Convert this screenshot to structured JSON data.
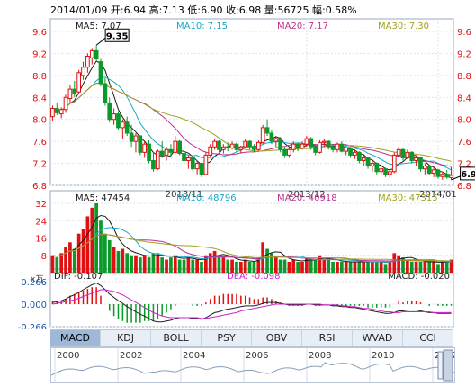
{
  "header": {
    "date": "2014/01/09",
    "open_label": "开:",
    "open": "6.94",
    "high_label": "高:",
    "high": "7.13",
    "low_label": "低:",
    "low": "6.90",
    "close_label": "收:",
    "close": "6.98",
    "volume_label": "量:",
    "volume": "56725",
    "change_label": "幅:",
    "change": "0.58%"
  },
  "colors": {
    "up": "#e01010",
    "down": "#0a9a2a",
    "ma5": "#1a1a1a",
    "ma10": "#1aa8c8",
    "ma20": "#c03090",
    "ma30": "#a0a020",
    "axis": "#e01010",
    "dif": "#202020",
    "dea": "#d020d0"
  },
  "tabs": [
    {
      "label": "MACD",
      "active": true
    },
    {
      "label": "KDJ"
    },
    {
      "label": "BOLL"
    },
    {
      "label": "PSY"
    },
    {
      "label": "OBV"
    },
    {
      "label": "RSI"
    },
    {
      "label": "WVAD"
    },
    {
      "label": "CCI"
    }
  ],
  "chart_data": [
    {
      "type": "candlestick",
      "legend": [
        {
          "label": "MA5: 7.07",
          "color": "#1a1a1a"
        },
        {
          "label": "MA10: 7.15",
          "color": "#1aa8c8"
        },
        {
          "label": "MA20: 7.17",
          "color": "#c03090"
        },
        {
          "label": "MA30: 7.30",
          "color": "#a0a020"
        }
      ],
      "ylim": [
        6.8,
        9.6
      ],
      "yticks": [
        "9.6",
        "9.2",
        "8.8",
        "8.4",
        "8.0",
        "7.6",
        "7.2",
        "6.8"
      ],
      "xticks": [
        {
          "label": "2013/11",
          "index": 30
        },
        {
          "label": "2013/12",
          "index": 58
        },
        {
          "label": "2014/01",
          "index": 88
        }
      ],
      "annotations": [
        {
          "label": "9.35",
          "index": 10
        },
        {
          "label": "6.90",
          "index": 91
        }
      ],
      "ohlc": [
        [
          8.05,
          8.25,
          7.98,
          8.2
        ],
        [
          8.2,
          8.3,
          8.08,
          8.12
        ],
        [
          8.1,
          8.22,
          8.02,
          8.18
        ],
        [
          8.18,
          8.45,
          8.12,
          8.4
        ],
        [
          8.38,
          8.62,
          8.3,
          8.55
        ],
        [
          8.55,
          8.7,
          8.4,
          8.48
        ],
        [
          8.5,
          8.9,
          8.46,
          8.85
        ],
        [
          8.8,
          9.05,
          8.72,
          8.95
        ],
        [
          8.95,
          9.2,
          8.85,
          9.15
        ],
        [
          9.12,
          9.3,
          9.0,
          9.25
        ],
        [
          9.25,
          9.35,
          9.05,
          9.1
        ],
        [
          9.05,
          9.1,
          8.6,
          8.65
        ],
        [
          8.65,
          8.75,
          8.25,
          8.3
        ],
        [
          8.3,
          8.4,
          7.95,
          8.0
        ],
        [
          8.0,
          8.2,
          7.9,
          8.1
        ],
        [
          8.1,
          8.15,
          7.8,
          7.85
        ],
        [
          7.85,
          8.0,
          7.65,
          7.95
        ],
        [
          7.95,
          8.05,
          7.7,
          7.75
        ],
        [
          7.75,
          7.9,
          7.5,
          7.6
        ],
        [
          7.6,
          7.75,
          7.4,
          7.7
        ],
        [
          7.7,
          7.72,
          7.35,
          7.4
        ],
        [
          7.4,
          7.6,
          7.3,
          7.55
        ],
        [
          7.55,
          7.62,
          7.2,
          7.25
        ],
        [
          7.25,
          7.4,
          7.05,
          7.1
        ],
        [
          7.1,
          7.45,
          7.08,
          7.42
        ],
        [
          7.42,
          7.6,
          7.3,
          7.35
        ],
        [
          7.35,
          7.5,
          7.25,
          7.45
        ],
        [
          7.45,
          7.55,
          7.3,
          7.4
        ],
        [
          7.4,
          7.7,
          7.38,
          7.6
        ],
        [
          7.6,
          7.62,
          7.35,
          7.38
        ],
        [
          7.38,
          7.45,
          7.2,
          7.25
        ],
        [
          7.25,
          7.35,
          7.1,
          7.3
        ],
        [
          7.3,
          7.32,
          7.05,
          7.1
        ],
        [
          7.1,
          7.25,
          7.0,
          7.2
        ],
        [
          7.2,
          7.22,
          6.95,
          7.0
        ],
        [
          7.0,
          7.4,
          6.98,
          7.35
        ],
        [
          7.35,
          7.55,
          7.3,
          7.5
        ],
        [
          7.5,
          7.65,
          7.45,
          7.6
        ],
        [
          7.6,
          7.62,
          7.4,
          7.45
        ],
        [
          7.45,
          7.55,
          7.38,
          7.5
        ],
        [
          7.5,
          7.58,
          7.42,
          7.48
        ],
        [
          7.48,
          7.6,
          7.45,
          7.55
        ],
        [
          7.55,
          7.58,
          7.4,
          7.45
        ],
        [
          7.45,
          7.52,
          7.38,
          7.5
        ],
        [
          7.5,
          7.65,
          7.48,
          7.6
        ],
        [
          7.6,
          7.62,
          7.45,
          7.5
        ],
        [
          7.5,
          7.55,
          7.4,
          7.45
        ],
        [
          7.45,
          7.62,
          7.42,
          7.58
        ],
        [
          7.58,
          7.9,
          7.55,
          7.85
        ],
        [
          7.85,
          8.0,
          7.7,
          7.75
        ],
        [
          7.75,
          7.8,
          7.55,
          7.6
        ],
        [
          7.6,
          7.7,
          7.5,
          7.65
        ],
        [
          7.65,
          7.68,
          7.4,
          7.45
        ],
        [
          7.45,
          7.5,
          7.3,
          7.35
        ],
        [
          7.35,
          7.5,
          7.3,
          7.45
        ],
        [
          7.45,
          7.6,
          7.4,
          7.55
        ],
        [
          7.55,
          7.58,
          7.42,
          7.48
        ],
        [
          7.48,
          7.6,
          7.45,
          7.55
        ],
        [
          7.55,
          7.7,
          7.5,
          7.65
        ],
        [
          7.65,
          7.68,
          7.45,
          7.5
        ],
        [
          7.5,
          7.55,
          7.35,
          7.4
        ],
        [
          7.4,
          7.62,
          7.38,
          7.58
        ],
        [
          7.58,
          7.65,
          7.5,
          7.6
        ],
        [
          7.6,
          7.62,
          7.45,
          7.5
        ],
        [
          7.5,
          7.55,
          7.4,
          7.45
        ],
        [
          7.45,
          7.58,
          7.4,
          7.55
        ],
        [
          7.55,
          7.6,
          7.4,
          7.42
        ],
        [
          7.42,
          7.5,
          7.35,
          7.48
        ],
        [
          7.48,
          7.5,
          7.3,
          7.35
        ],
        [
          7.35,
          7.45,
          7.28,
          7.4
        ],
        [
          7.4,
          7.42,
          7.2,
          7.25
        ],
        [
          7.25,
          7.35,
          7.15,
          7.3
        ],
        [
          7.3,
          7.32,
          7.1,
          7.15
        ],
        [
          7.15,
          7.25,
          7.05,
          7.2
        ],
        [
          7.2,
          7.22,
          7.0,
          7.05
        ],
        [
          7.05,
          7.15,
          6.98,
          7.1
        ],
        [
          7.1,
          7.12,
          6.95,
          7.0
        ],
        [
          7.0,
          7.1,
          6.92,
          7.05
        ],
        [
          7.05,
          7.4,
          7.02,
          7.35
        ],
        [
          7.35,
          7.5,
          7.3,
          7.45
        ],
        [
          7.45,
          7.48,
          7.25,
          7.3
        ],
        [
          7.3,
          7.45,
          7.28,
          7.4
        ],
        [
          7.4,
          7.42,
          7.2,
          7.25
        ],
        [
          7.25,
          7.35,
          7.15,
          7.3
        ],
        [
          7.3,
          7.32,
          7.05,
          7.1
        ],
        [
          7.1,
          7.2,
          7.0,
          7.15
        ],
        [
          7.15,
          7.18,
          6.98,
          7.02
        ],
        [
          7.02,
          7.12,
          6.95,
          7.08
        ],
        [
          7.08,
          7.1,
          6.92,
          6.96
        ],
        [
          6.96,
          7.05,
          6.9,
          7.0
        ],
        [
          7.0,
          7.08,
          6.92,
          6.95
        ],
        [
          6.94,
          7.13,
          6.9,
          6.98
        ]
      ]
    },
    {
      "type": "bar",
      "legend": [
        {
          "label": "MA5: 47454",
          "color": "#1a1a1a"
        },
        {
          "label": "MA10: 48796",
          "color": "#1aa8c8"
        },
        {
          "label": "MA20: 40918",
          "color": "#c03090"
        },
        {
          "label": "MA30: 47315",
          "color": "#a0a020"
        }
      ],
      "unit": "x万",
      "ylim": [
        0,
        32
      ],
      "yticks": [
        "32",
        "24",
        "16",
        "8"
      ],
      "volume": [
        8,
        7,
        9,
        12,
        14,
        11,
        18,
        20,
        26,
        30,
        32,
        24,
        18,
        15,
        12,
        10,
        11,
        9,
        8,
        8,
        7,
        8,
        7,
        9,
        9,
        7,
        6,
        7,
        8,
        6,
        6,
        7,
        6,
        6,
        5,
        8,
        9,
        10,
        8,
        7,
        6,
        6,
        5,
        5,
        6,
        5,
        5,
        7,
        14,
        11,
        9,
        7,
        6,
        6,
        5,
        6,
        5,
        5,
        7,
        6,
        6,
        8,
        6,
        6,
        5,
        5,
        5,
        5,
        5,
        5,
        5,
        5,
        5,
        5,
        5,
        5,
        4,
        5,
        9,
        8,
        7,
        6,
        5,
        5,
        5,
        5,
        5,
        5,
        4,
        5,
        5,
        6
      ]
    },
    {
      "type": "macd",
      "legend": [
        {
          "label": "DIF: -0.107",
          "color": "#202020"
        },
        {
          "label": "DEA: -0.098",
          "color": "#d020d0"
        },
        {
          "label": "MACD: -0.020",
          "color": "#202020"
        }
      ],
      "ylim": [
        -0.266,
        0.266
      ],
      "yticks": [
        "0.266",
        "0.000",
        "-0.266"
      ],
      "dif": [
        0.02,
        0.03,
        0.04,
        0.06,
        0.09,
        0.11,
        0.14,
        0.17,
        0.2,
        0.23,
        0.25,
        0.22,
        0.17,
        0.12,
        0.08,
        0.04,
        0.01,
        -0.03,
        -0.06,
        -0.09,
        -0.12,
        -0.14,
        -0.17,
        -0.2,
        -0.21,
        -0.21,
        -0.2,
        -0.19,
        -0.17,
        -0.16,
        -0.16,
        -0.16,
        -0.17,
        -0.17,
        -0.18,
        -0.16,
        -0.13,
        -0.1,
        -0.09,
        -0.07,
        -0.06,
        -0.05,
        -0.04,
        -0.03,
        -0.02,
        -0.02,
        -0.02,
        -0.01,
        0.01,
        0.02,
        0.02,
        0.02,
        0.01,
        0,
        -0.01,
        -0.01,
        -0.01,
        -0.01,
        0,
        0,
        -0.01,
        -0.01,
        -0.01,
        -0.01,
        -0.02,
        -0.02,
        -0.03,
        -0.03,
        -0.04,
        -0.04,
        -0.05,
        -0.06,
        -0.07,
        -0.08,
        -0.09,
        -0.1,
        -0.11,
        -0.11,
        -0.1,
        -0.08,
        -0.08,
        -0.07,
        -0.07,
        -0.07,
        -0.08,
        -0.09,
        -0.1,
        -0.1,
        -0.11,
        -0.11,
        -0.11,
        -0.107
      ],
      "dea": [
        0,
        0.01,
        0.02,
        0.03,
        0.04,
        0.05,
        0.07,
        0.09,
        0.11,
        0.13,
        0.15,
        0.17,
        0.17,
        0.16,
        0.15,
        0.13,
        0.11,
        0.08,
        0.05,
        0.02,
        -0.01,
        -0.04,
        -0.07,
        -0.1,
        -0.12,
        -0.14,
        -0.15,
        -0.16,
        -0.16,
        -0.16,
        -0.16,
        -0.16,
        -0.16,
        -0.16,
        -0.17,
        -0.17,
        -0.16,
        -0.15,
        -0.14,
        -0.13,
        -0.12,
        -0.11,
        -0.1,
        -0.08,
        -0.07,
        -0.06,
        -0.05,
        -0.04,
        -0.03,
        -0.02,
        -0.01,
        0,
        0,
        0,
        0,
        0,
        0,
        0,
        0,
        0,
        0,
        0,
        -0.01,
        -0.01,
        -0.01,
        -0.01,
        -0.02,
        -0.02,
        -0.03,
        -0.03,
        -0.04,
        -0.05,
        -0.05,
        -0.06,
        -0.07,
        -0.08,
        -0.09,
        -0.09,
        -0.1,
        -0.1,
        -0.09,
        -0.09,
        -0.09,
        -0.09,
        -0.09,
        -0.09,
        -0.09,
        -0.1,
        -0.1,
        -0.1,
        -0.1,
        -0.098
      ]
    }
  ],
  "timeline": {
    "labels": [
      "2000",
      "2002",
      "2004",
      "2006",
      "2008",
      "2010",
      "2012"
    ]
  }
}
